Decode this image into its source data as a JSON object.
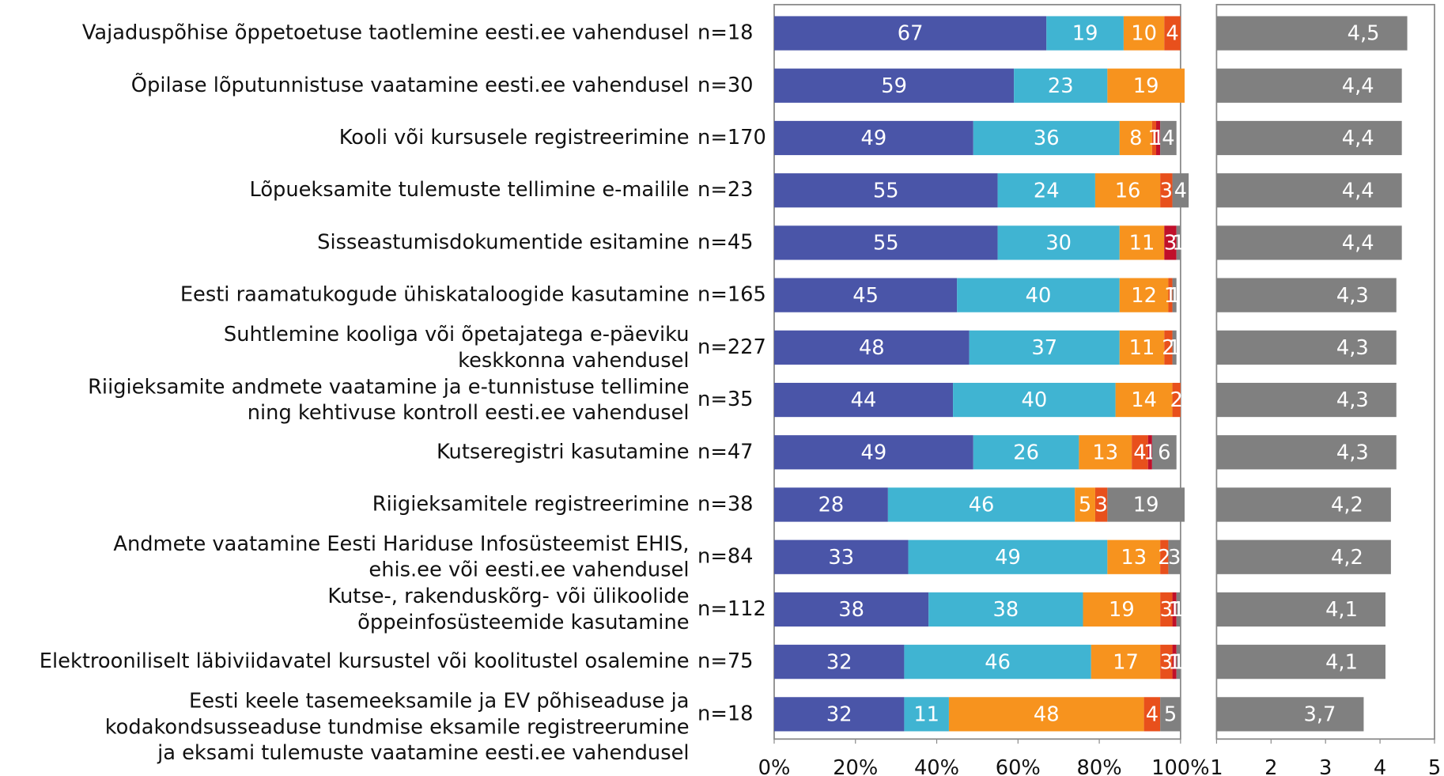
{
  "chart_data": [
    {
      "type": "stacked-bar-horizontal",
      "categories": [
        [
          "Vajaduspõhise õppetoetuse taotlemine eesti.ee vahendusel"
        ],
        [
          "Õpilase lõputunnistuse vaatamine eesti.ee vahendusel"
        ],
        [
          "Kooli või kursusele registreerimine"
        ],
        [
          "Lõpueksamite tulemuste tellimine e-mailile"
        ],
        [
          "Sisseastumisdokumentide esitamine"
        ],
        [
          "Eesti raamatukogude ühiskataloogide kasutamine"
        ],
        [
          "Suhtlemine kooliga või õpetajatega e-päeviku",
          "keskkonna vahendusel"
        ],
        [
          "Riigieksamite andmete vaatamine ja e-tunnistuse tellimine",
          "ning kehtivuse kontroll eesti.ee vahendusel"
        ],
        [
          "Kutseregistri kasutamine"
        ],
        [
          "Riigieksamitele registreerimine"
        ],
        [
          "Andmete vaatamine Eesti Hariduse Infosüsteemist EHIS,",
          "ehis.ee või eesti.ee vahendusel"
        ],
        [
          "Kutse-, rakenduskõrg- või ülikoolide",
          "õppeinfosüsteemide kasutamine"
        ],
        [
          "Elektrooniliselt läbiviidavatel kursustel või koolitustel osalemine"
        ],
        [
          "Eesti keele tasemeeksamile ja EV põhiseaduse ja",
          "kodakondsusseaduse tundmise eksamile registreerumine",
          "ja eksami tulemuste vaatamine eesti.ee vahendusel"
        ]
      ],
      "n_labels": [
        "n=18",
        "n=30",
        "n=170",
        "n=23",
        "n=45",
        "n=165",
        "n=227",
        "n=35",
        "n=47",
        "n=38",
        "n=84",
        "n=112",
        "n=75",
        "n=18"
      ],
      "series": [
        {
          "color": "#4a55a8",
          "values": [
            67,
            59,
            49,
            55,
            55,
            45,
            48,
            44,
            49,
            28,
            33,
            38,
            32,
            32
          ]
        },
        {
          "color": "#40b4d2",
          "values": [
            19,
            23,
            36,
            24,
            30,
            40,
            37,
            40,
            26,
            46,
            49,
            38,
            46,
            11
          ]
        },
        {
          "color": "#f7931e",
          "values": [
            10,
            19,
            8,
            16,
            11,
            12,
            11,
            14,
            13,
            5,
            13,
            19,
            17,
            48
          ]
        },
        {
          "color": "#e8501c",
          "values": [
            4,
            null,
            1,
            3,
            null,
            1,
            2,
            2,
            4,
            3,
            2,
            3,
            3,
            4
          ]
        },
        {
          "color": "#c0102a",
          "values": [
            null,
            null,
            1,
            null,
            3,
            null,
            null,
            null,
            1,
            null,
            null,
            1,
            1,
            null
          ]
        },
        {
          "color": "#808080",
          "values": [
            null,
            null,
            4,
            4,
            1,
            1,
            1,
            null,
            6,
            19,
            3,
            1,
            1,
            5
          ]
        }
      ],
      "xlim": [
        0,
        100
      ],
      "xticks": [
        {
          "value": 0,
          "label": "0%"
        },
        {
          "value": 20,
          "label": "20%"
        },
        {
          "value": 40,
          "label": "40%"
        },
        {
          "value": 60,
          "label": "60%"
        },
        {
          "value": 80,
          "label": "80%"
        },
        {
          "value": 100,
          "label": "100%"
        }
      ]
    },
    {
      "type": "bar-horizontal",
      "color": "#808080",
      "values": [
        4.5,
        4.4,
        4.4,
        4.4,
        4.4,
        4.3,
        4.3,
        4.3,
        4.3,
        4.2,
        4.2,
        4.1,
        4.1,
        3.7
      ],
      "value_labels": [
        "4,5",
        "4,4",
        "4,4",
        "4,4",
        "4,4",
        "4,3",
        "4,3",
        "4,3",
        "4,3",
        "4,2",
        "4,2",
        "4,1",
        "4,1",
        "3,7"
      ],
      "xlim": [
        1,
        5
      ],
      "xticks": [
        1,
        2,
        3,
        4,
        5
      ]
    }
  ]
}
